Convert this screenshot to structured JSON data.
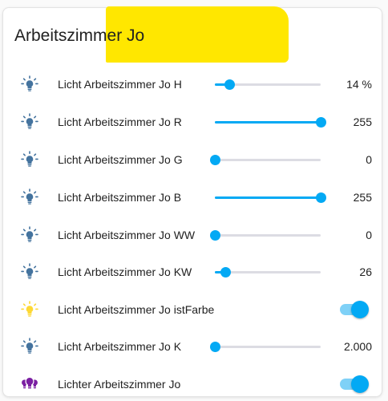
{
  "card": {
    "title": "Arbeitszimmer Jo"
  },
  "colors": {
    "accent": "#03a9f4",
    "icon_default": "#44739e",
    "icon_active": "#fdd835",
    "icon_group": "#7b1fa2",
    "highlight": "#ffe700"
  },
  "rows": [
    {
      "label": "Licht Arbeitszimmer Jo H",
      "type": "slider",
      "value": "14 %",
      "level": 0.14,
      "icon": "bulb-icon"
    },
    {
      "label": "Licht Arbeitszimmer Jo R",
      "type": "slider",
      "value": "255",
      "level": 1.0,
      "icon": "bulb-icon"
    },
    {
      "label": "Licht Arbeitszimmer Jo G",
      "type": "slider",
      "value": "0",
      "level": 0.0,
      "icon": "bulb-icon"
    },
    {
      "label": "Licht Arbeitszimmer Jo B",
      "type": "slider",
      "value": "255",
      "level": 1.0,
      "icon": "bulb-icon"
    },
    {
      "label": "Licht Arbeitszimmer Jo WW",
      "type": "slider",
      "value": "0",
      "level": 0.0,
      "icon": "bulb-icon"
    },
    {
      "label": "Licht Arbeitszimmer Jo KW",
      "type": "slider",
      "value": "26",
      "level": 0.1,
      "icon": "bulb-icon"
    },
    {
      "label": "Licht Arbeitszimmer Jo istFarbe",
      "type": "toggle",
      "state": "on",
      "icon": "bulb-active-icon"
    },
    {
      "label": "Licht Arbeitszimmer Jo K",
      "type": "slider",
      "value": "2.000",
      "level": 0.0,
      "icon": "bulb-icon"
    },
    {
      "label": "Lichter Arbeitszimmer Jo",
      "type": "toggle",
      "state": "on",
      "icon": "light-group-icon"
    }
  ]
}
